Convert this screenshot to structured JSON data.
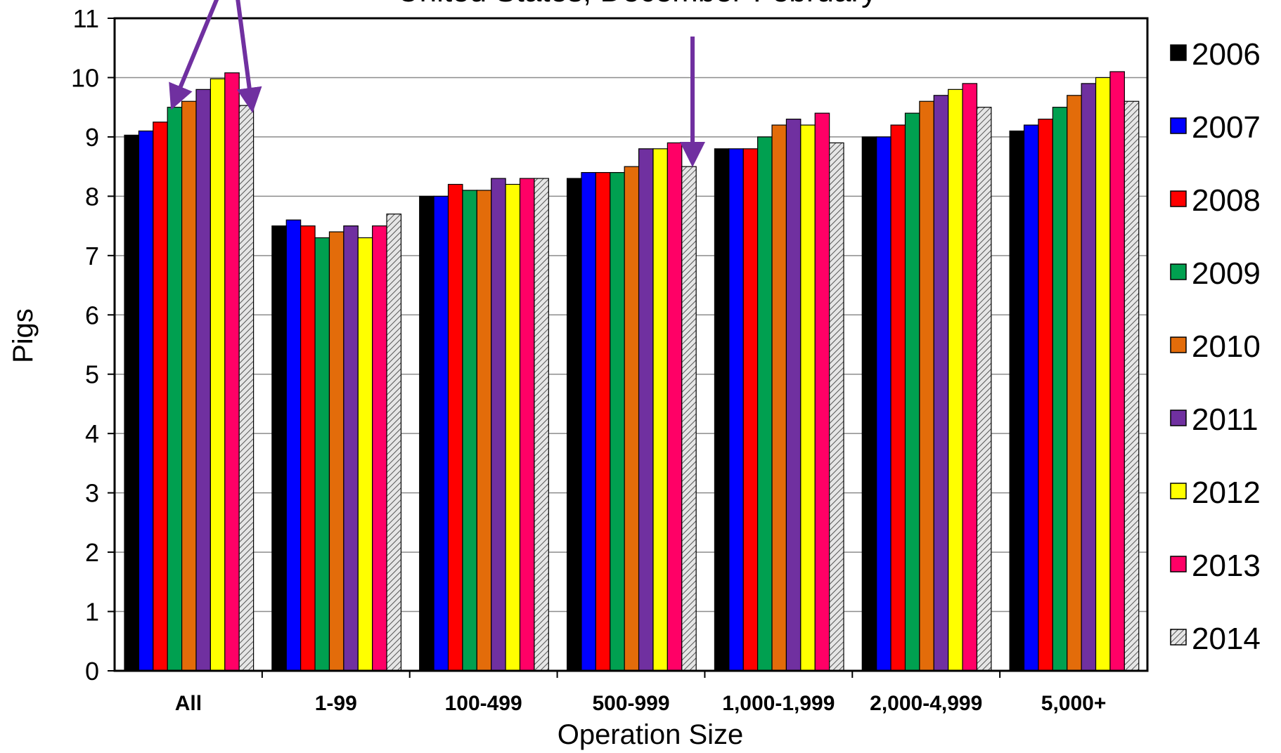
{
  "chart_data": {
    "type": "bar",
    "title": "United States, December-February",
    "xlabel": "Operation Size",
    "ylabel": "Pigs",
    "ylim": [
      0,
      11
    ],
    "yticks": [
      "0",
      "1",
      "2",
      "3",
      "4",
      "5",
      "6",
      "7",
      "8",
      "9",
      "10",
      "11"
    ],
    "grid": "horizontal",
    "legend_position": "right",
    "categories": [
      "All",
      "1-99",
      "100-499",
      "500-999",
      "1,000-1,999",
      "2,000-4,999",
      "5,000+"
    ],
    "series": [
      {
        "name": "2006",
        "color": "#000000",
        "values": [
          9.03,
          7.5,
          8.0,
          8.3,
          8.8,
          9.0,
          9.1
        ]
      },
      {
        "name": "2007",
        "color": "#0000ff",
        "values": [
          9.1,
          7.6,
          8.0,
          8.4,
          8.8,
          9.0,
          9.2
        ]
      },
      {
        "name": "2008",
        "color": "#ff0000",
        "values": [
          9.25,
          7.5,
          8.2,
          8.4,
          8.8,
          9.2,
          9.3
        ]
      },
      {
        "name": "2009",
        "color": "#00a050",
        "values": [
          9.5,
          7.3,
          8.1,
          8.4,
          9.0,
          9.4,
          9.5
        ]
      },
      {
        "name": "2010",
        "color": "#e36c0a",
        "values": [
          9.6,
          7.4,
          8.1,
          8.5,
          9.2,
          9.6,
          9.7
        ]
      },
      {
        "name": "2011",
        "color": "#7030a0",
        "values": [
          9.8,
          7.5,
          8.3,
          8.8,
          9.3,
          9.7,
          9.9
        ]
      },
      {
        "name": "2012",
        "color": "#ffff00",
        "values": [
          9.98,
          7.3,
          8.2,
          8.8,
          9.2,
          9.8,
          10.0
        ]
      },
      {
        "name": "2013",
        "color": "#ff0066",
        "values": [
          10.08,
          7.5,
          8.3,
          8.9,
          9.4,
          9.9,
          10.1
        ]
      },
      {
        "name": "2014",
        "color": "#c8c8c8",
        "pattern": "hatch",
        "values": [
          9.53,
          7.7,
          8.3,
          8.5,
          8.9,
          9.5,
          9.6
        ]
      }
    ],
    "annotations": [
      {
        "type": "arrow",
        "color": "#7030a0",
        "target": "All / 2009"
      },
      {
        "type": "arrow",
        "color": "#7030a0",
        "target": "All / 2014"
      },
      {
        "type": "arrow",
        "color": "#7030a0",
        "target": "500-999 / 2014"
      }
    ]
  }
}
